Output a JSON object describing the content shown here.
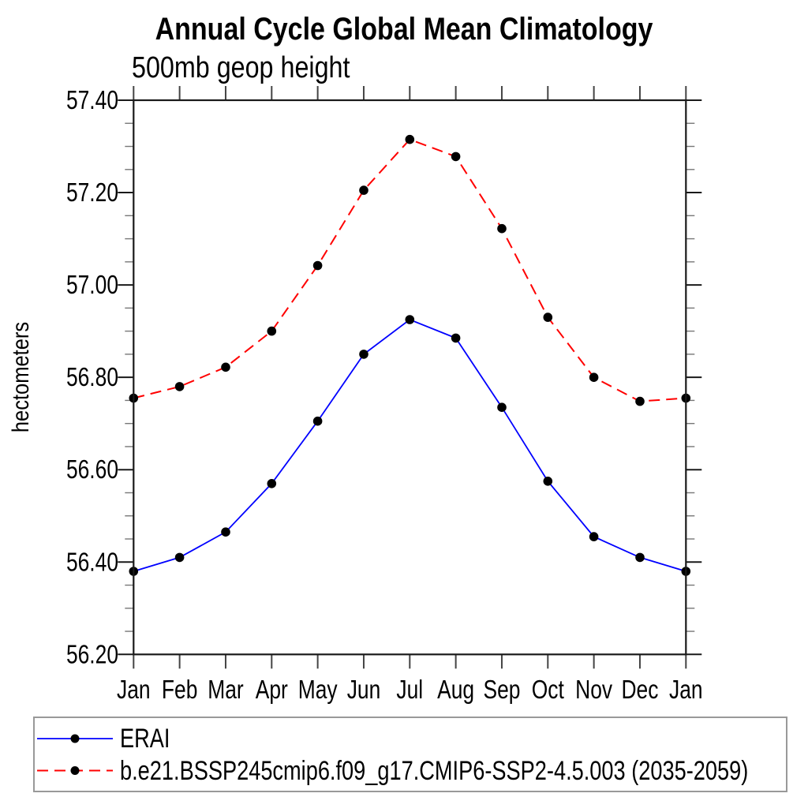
{
  "chart_data": {
    "type": "line",
    "title": "Annual Cycle Global Mean Climatology",
    "subtitle": "500mb geop height",
    "ylabel": "hectometers",
    "xlabel": "",
    "x_categories": [
      "Jan",
      "Feb",
      "Mar",
      "Apr",
      "May",
      "Jun",
      "Jul",
      "Aug",
      "Sep",
      "Oct",
      "Nov",
      "Dec",
      "Jan"
    ],
    "ylim": [
      56.2,
      57.4
    ],
    "y_tick_values": [
      57.4,
      57.2,
      57.0,
      56.8,
      56.6,
      56.4,
      56.2
    ],
    "y_tick_labels": [
      "57.40",
      "57.20",
      "57.00",
      "56.80",
      "56.60",
      "56.40",
      "56.20"
    ],
    "y_minor_tick_step": 0.05,
    "grid": false,
    "axis_color": "#1a1a1a",
    "minor_tick_color": "#777777",
    "marker_color": "#000000",
    "legend": {
      "position": "bottom-left",
      "border_color": "#999999",
      "background": "#ffffff"
    },
    "series": [
      {
        "name": "ERAI",
        "color": "#0000ff",
        "line_style": "solid",
        "marker": "filled-circle",
        "values": [
          56.38,
          56.41,
          56.465,
          56.57,
          56.705,
          56.85,
          56.925,
          56.885,
          56.735,
          56.575,
          56.455,
          56.41,
          56.38
        ]
      },
      {
        "name": "b.e21.BSSP245cmip6.f09_g17.CMIP6-SSP2-4.5.003 (2035-2059)",
        "color": "#ff0000",
        "line_style": "dashed",
        "marker": "filled-circle",
        "values": [
          56.755,
          56.78,
          56.822,
          56.9,
          57.042,
          57.205,
          57.315,
          57.278,
          57.122,
          56.93,
          56.8,
          56.748,
          56.755
        ]
      }
    ]
  }
}
